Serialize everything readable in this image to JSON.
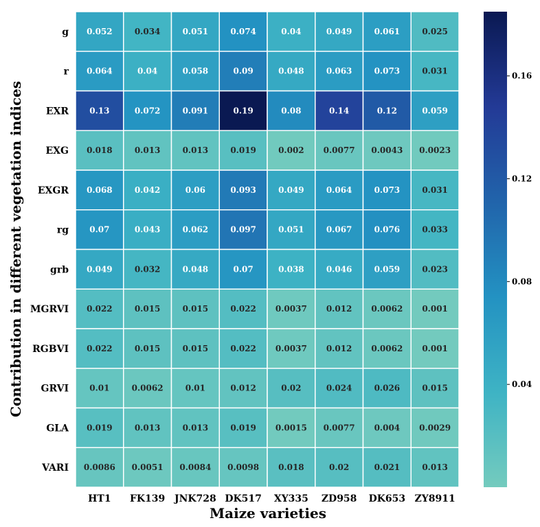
{
  "chart_data": {
    "type": "heatmap",
    "title": "",
    "xlabel": "Maize varieties",
    "ylabel": "Contribution in different vegetation indices",
    "x_categories": [
      "HT1",
      "FK139",
      "JNK728",
      "DK517",
      "XY335",
      "ZD958",
      "DK653",
      "ZY8911"
    ],
    "y_categories": [
      "g",
      "r",
      "EXR",
      "EXG",
      "EXGR",
      "rg",
      "grb",
      "MGRVI",
      "RGBVI",
      "GRVI",
      "GLA",
      "VARI"
    ],
    "values": [
      [
        "0.052",
        "0.034",
        "0.051",
        "0.074",
        "0.04",
        "0.049",
        "0.061",
        "0.025"
      ],
      [
        "0.064",
        "0.04",
        "0.058",
        "0.09",
        "0.048",
        "0.063",
        "0.073",
        "0.031"
      ],
      [
        "0.13",
        "0.072",
        "0.091",
        "0.19",
        "0.08",
        "0.14",
        "0.12",
        "0.059"
      ],
      [
        "0.018",
        "0.013",
        "0.013",
        "0.019",
        "0.002",
        "0.0077",
        "0.0043",
        "0.0023"
      ],
      [
        "0.068",
        "0.042",
        "0.06",
        "0.093",
        "0.049",
        "0.064",
        "0.073",
        "0.031"
      ],
      [
        "0.07",
        "0.043",
        "0.062",
        "0.097",
        "0.051",
        "0.067",
        "0.076",
        "0.033"
      ],
      [
        "0.049",
        "0.032",
        "0.048",
        "0.07",
        "0.038",
        "0.046",
        "0.059",
        "0.023"
      ],
      [
        "0.022",
        "0.015",
        "0.015",
        "0.022",
        "0.0037",
        "0.012",
        "0.0062",
        "0.001"
      ],
      [
        "0.022",
        "0.015",
        "0.015",
        "0.022",
        "0.0037",
        "0.012",
        "0.0062",
        "0.001"
      ],
      [
        "0.01",
        "0.0062",
        "0.01",
        "0.012",
        "0.02",
        "0.024",
        "0.026",
        "0.015"
      ],
      [
        "0.019",
        "0.013",
        "0.013",
        "0.019",
        "0.0015",
        "0.0077",
        "0.004",
        "0.0029"
      ],
      [
        "0.0086",
        "0.0051",
        "0.0084",
        "0.0098",
        "0.018",
        "0.02",
        "0.021",
        "0.013"
      ]
    ],
    "colorbar": {
      "ticks": [
        "0.04",
        "0.08",
        "0.12",
        "0.16"
      ],
      "range": [
        0.0,
        0.185
      ],
      "colormap": "YlGnBu"
    },
    "colors": {
      "grid_line": "#ffffff"
    }
  }
}
